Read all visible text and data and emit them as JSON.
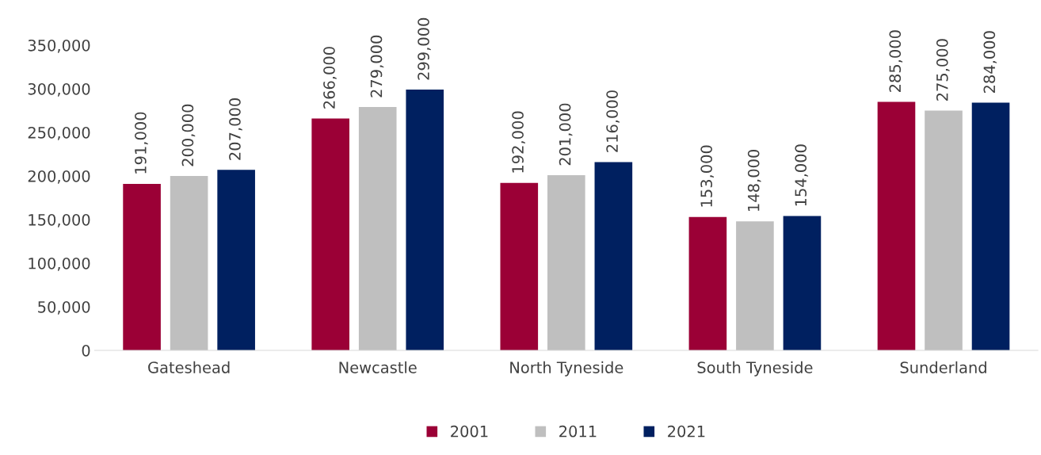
{
  "chart_data": {
    "type": "bar",
    "categories": [
      "Gateshead",
      "Newcastle",
      "North Tyneside",
      "South Tyneside",
      "Sunderland"
    ],
    "series": [
      {
        "name": "2001",
        "color": "#9b0036",
        "values": [
          191000,
          266000,
          192000,
          153000,
          285000
        ],
        "value_labels": [
          "191,000",
          "266,000",
          "192,000",
          "153,000",
          "285,000"
        ]
      },
      {
        "name": "2011",
        "color": "#bfbfbf",
        "values": [
          200000,
          279000,
          201000,
          148000,
          275000
        ],
        "value_labels": [
          "200,000",
          "279,000",
          "201,000",
          "148,000",
          "275,000"
        ]
      },
      {
        "name": "2021",
        "color": "#002060",
        "values": [
          207000,
          299000,
          216000,
          154000,
          284000
        ],
        "value_labels": [
          "207,000",
          "299,000",
          "216,000",
          "154,000",
          "284,000"
        ]
      }
    ],
    "ylim": [
      0,
      350000
    ],
    "yticks": [
      {
        "value": 0,
        "label": "0"
      },
      {
        "value": 50000,
        "label": "50,000"
      },
      {
        "value": 100000,
        "label": "100,000"
      },
      {
        "value": 150000,
        "label": "150,000"
      },
      {
        "value": 200000,
        "label": "200,000"
      },
      {
        "value": 250000,
        "label": "250,000"
      },
      {
        "value": 300000,
        "label": "300,000"
      },
      {
        "value": 350000,
        "label": "350,000"
      }
    ],
    "grid": false,
    "legend": "bottom"
  }
}
